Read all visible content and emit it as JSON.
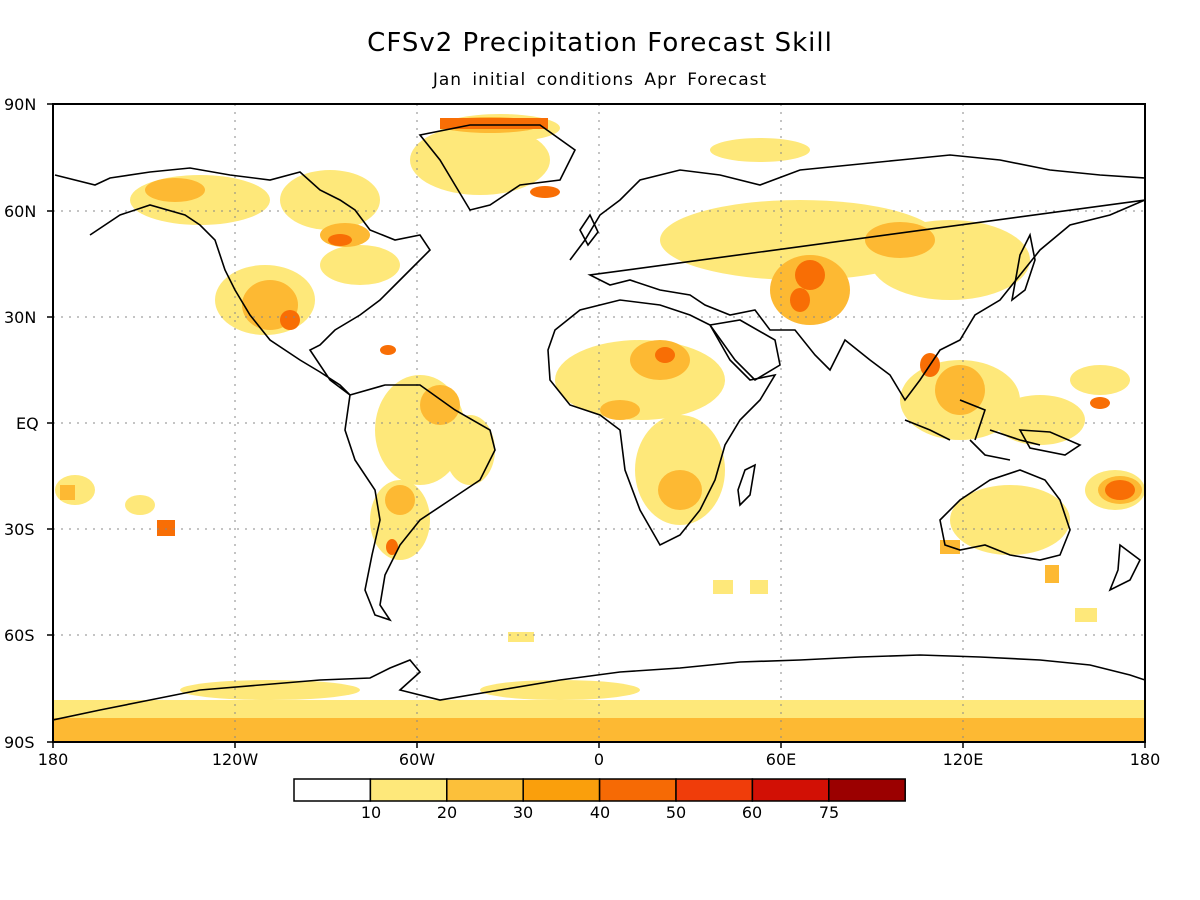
{
  "title": "CFSv2 Precipitation Forecast Skill",
  "subtitle": "Jan initial conditions  Apr Forecast",
  "map": {
    "lat_labels": [
      "90N",
      "60N",
      "30N",
      "EQ",
      "30S",
      "60S",
      "90S"
    ],
    "lon_labels": [
      "180",
      "120W",
      "60W",
      "0",
      "60E",
      "120E",
      "180"
    ],
    "grid": "dotted",
    "coastline_color": "#000000",
    "skill_field_colors": [
      "#fee87a",
      "#fdb933",
      "#fb9d10",
      "#f86e05"
    ]
  },
  "legend": {
    "labels": [
      "10",
      "20",
      "30",
      "40",
      "50",
      "60",
      "75"
    ],
    "colors": [
      "#ffffff",
      "#fee87a",
      "#fcc03a",
      "#fa9f0c",
      "#f66a05",
      "#f03d0a",
      "#d21005",
      "#9b0000"
    ]
  }
}
